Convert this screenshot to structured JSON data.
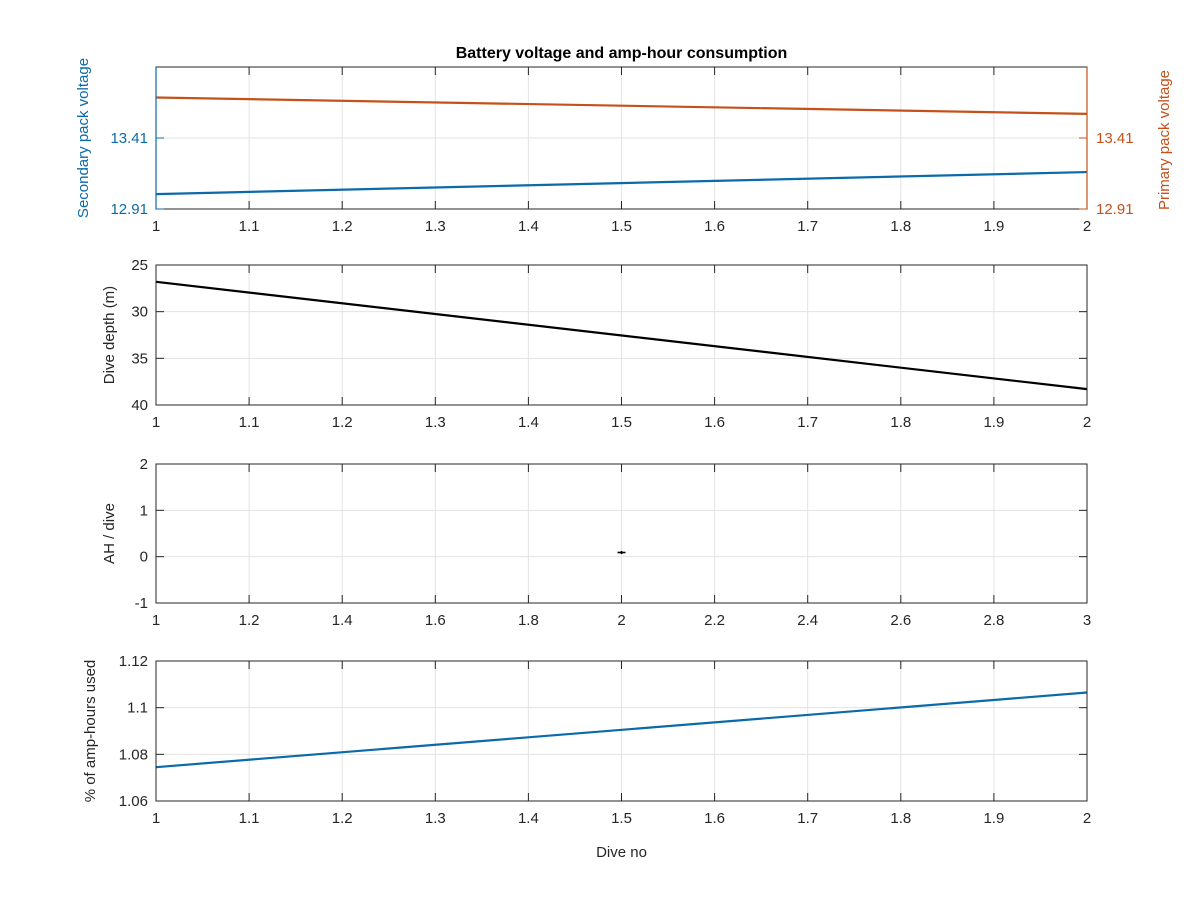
{
  "colors": {
    "blue": "#0b6aa8",
    "orange": "#c5511a",
    "black": "#000000",
    "axis": "#262626",
    "grid": "#e3e3e3"
  },
  "chart_data": [
    {
      "type": "line",
      "title": "Battery voltage and amp-hour consumption",
      "ylabel_left": "Secondary pack voltage",
      "ylabel_right": "Primary pack voltage",
      "xlabel": "",
      "xlim": [
        1,
        2
      ],
      "ylim": [
        12.91,
        13.91
      ],
      "x_ticks": [
        1,
        1.1,
        1.2,
        1.3,
        1.4,
        1.5,
        1.6,
        1.7,
        1.8,
        1.9,
        2
      ],
      "x_tick_labels": [
        "1",
        "1.1",
        "1.2",
        "1.3",
        "1.4",
        "1.5",
        "1.6",
        "1.7",
        "1.8",
        "1.9",
        "2"
      ],
      "y_ticks_left": [
        12.91,
        13.41
      ],
      "y_tick_labels_left": [
        "12.91",
        "13.41"
      ],
      "y_ticks_right": [
        12.91,
        13.41
      ],
      "y_tick_labels_right": [
        "12.91",
        "13.41"
      ],
      "grid": true,
      "series": [
        {
          "axis": "left",
          "color": "#0b6aa8",
          "x": [
            1,
            2
          ],
          "y": [
            13.015,
            13.17
          ]
        },
        {
          "axis": "right",
          "color": "#c5511a",
          "x": [
            1,
            2
          ],
          "y": [
            13.695,
            13.58
          ]
        }
      ]
    },
    {
      "type": "line",
      "title": "",
      "ylabel": "Dive depth (m)",
      "xlabel": "",
      "xlim": [
        1,
        2
      ],
      "ylim": [
        25,
        40
      ],
      "y_reversed": true,
      "x_ticks": [
        1,
        1.1,
        1.2,
        1.3,
        1.4,
        1.5,
        1.6,
        1.7,
        1.8,
        1.9,
        2
      ],
      "x_tick_labels": [
        "1",
        "1.1",
        "1.2",
        "1.3",
        "1.4",
        "1.5",
        "1.6",
        "1.7",
        "1.8",
        "1.9",
        "2"
      ],
      "y_ticks": [
        25,
        30,
        35,
        40
      ],
      "y_tick_labels": [
        "25",
        "30",
        "35",
        "40"
      ],
      "grid": true,
      "series": [
        {
          "color": "#000000",
          "x": [
            1,
            2
          ],
          "y": [
            26.8,
            38.3
          ]
        }
      ]
    },
    {
      "type": "scatter",
      "title": "",
      "ylabel": "AH / dive",
      "xlabel": "",
      "xlim": [
        1,
        3
      ],
      "ylim": [
        -1,
        2
      ],
      "x_ticks": [
        1,
        1.2,
        1.4,
        1.6,
        1.8,
        2,
        2.2,
        2.4,
        2.6,
        2.8,
        3
      ],
      "x_tick_labels": [
        "1",
        "1.2",
        "1.4",
        "1.6",
        "1.8",
        "2",
        "2.2",
        "2.4",
        "2.6",
        "2.8",
        "3"
      ],
      "y_ticks": [
        -1,
        0,
        1,
        2
      ],
      "y_tick_labels": [
        "-1",
        "0",
        "1",
        "2"
      ],
      "grid": true,
      "series": [
        {
          "color": "#000000",
          "x": [
            2
          ],
          "y": [
            0.09
          ]
        }
      ]
    },
    {
      "type": "line",
      "title": "",
      "ylabel": "% of amp-hours used",
      "xlabel": "Dive no",
      "xlim": [
        1,
        2
      ],
      "ylim": [
        1.06,
        1.12
      ],
      "x_ticks": [
        1,
        1.1,
        1.2,
        1.3,
        1.4,
        1.5,
        1.6,
        1.7,
        1.8,
        1.9,
        2
      ],
      "x_tick_labels": [
        "1",
        "1.1",
        "1.2",
        "1.3",
        "1.4",
        "1.5",
        "1.6",
        "1.7",
        "1.8",
        "1.9",
        "2"
      ],
      "y_ticks": [
        1.06,
        1.08,
        1.1,
        1.12
      ],
      "y_tick_labels": [
        "1.06",
        "1.08",
        "1.1",
        "1.12"
      ],
      "grid": true,
      "series": [
        {
          "color": "#0b6aa8",
          "x": [
            1,
            2
          ],
          "y": [
            1.0745,
            1.1065
          ]
        }
      ]
    }
  ]
}
